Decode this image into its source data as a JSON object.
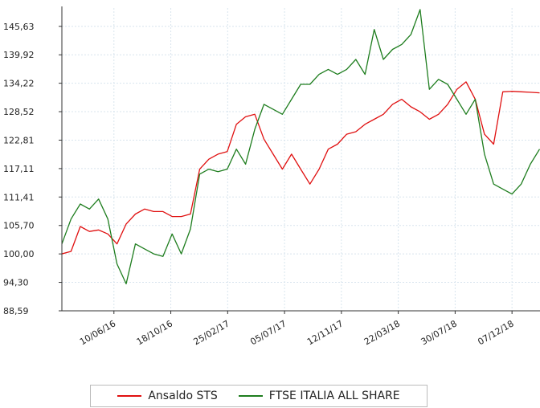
{
  "chart_data": {
    "type": "line",
    "x": [
      "2016-02-12",
      "2016-03-04",
      "2016-03-25",
      "2016-04-15",
      "2016-05-06",
      "2016-05-27",
      "2016-06-17",
      "2016-07-08",
      "2016-07-29",
      "2016-08-19",
      "2016-09-09",
      "2016-09-30",
      "2016-10-21",
      "2016-11-11",
      "2016-12-02",
      "2016-12-23",
      "2017-01-13",
      "2017-02-03",
      "2017-02-24",
      "2017-03-17",
      "2017-04-07",
      "2017-04-28",
      "2017-05-19",
      "2017-06-09",
      "2017-06-30",
      "2017-07-21",
      "2017-08-11",
      "2017-09-01",
      "2017-09-22",
      "2017-10-13",
      "2017-11-03",
      "2017-11-24",
      "2017-12-15",
      "2018-01-05",
      "2018-01-26",
      "2018-02-16",
      "2018-03-09",
      "2018-03-30",
      "2018-04-20",
      "2018-05-11",
      "2018-06-01",
      "2018-06-22",
      "2018-07-13",
      "2018-08-03",
      "2018-08-24",
      "2018-09-14",
      "2018-10-05",
      "2018-10-26",
      "2018-11-16",
      "2018-12-07",
      "2018-12-28",
      "2019-01-18",
      "2019-02-08"
    ],
    "series": [
      {
        "name": "Ansaldo STS",
        "color": "#e01010",
        "values": [
          100.0,
          100.5,
          105.5,
          104.5,
          104.8,
          104,
          102,
          106,
          108,
          109,
          108.5,
          108.5,
          107.5,
          107.5,
          108,
          117,
          119,
          120,
          120.5,
          126,
          127.5,
          128,
          123,
          120,
          117,
          120,
          117,
          114,
          117,
          121,
          122,
          124,
          124.5,
          126,
          127,
          128,
          130,
          131,
          129.5,
          128.5,
          127,
          128,
          130,
          133,
          134.5,
          131,
          124,
          122,
          132.5,
          132.6,
          132.5,
          132.4,
          132.3
        ]
      },
      {
        "name": "FTSE ITALIA ALL SHARE",
        "color": "#1e7d1e",
        "values": [
          102,
          107,
          110,
          109,
          111,
          107,
          98,
          94,
          102,
          101,
          100,
          99.5,
          104,
          100,
          105,
          116,
          117,
          116.5,
          117,
          121,
          118,
          125,
          130,
          129,
          128,
          131,
          134,
          134,
          136,
          137,
          136,
          137,
          139,
          136,
          145,
          139,
          141,
          142,
          144,
          149,
          133,
          135,
          134,
          131,
          128,
          131,
          120,
          114,
          113,
          112,
          114,
          118,
          121
        ]
      }
    ],
    "xlim": [
      "2016-02-12",
      "2019-02-09"
    ],
    "xticks": [
      {
        "value": "2016-06-10",
        "label": "10/06/16"
      },
      {
        "value": "2016-10-18",
        "label": "18/10/16"
      },
      {
        "value": "2017-02-25",
        "label": "25/02/17"
      },
      {
        "value": "2017-07-05",
        "label": "05/07/17"
      },
      {
        "value": "2017-11-12",
        "label": "12/11/17"
      },
      {
        "value": "2018-03-22",
        "label": "22/03/18"
      },
      {
        "value": "2018-07-30",
        "label": "30/07/18"
      },
      {
        "value": "2018-12-07",
        "label": "07/12/18"
      }
    ],
    "ylim": [
      88.59,
      149.3
    ],
    "yticks": [
      {
        "value": 88.59,
        "label": "88,59"
      },
      {
        "value": 94.3,
        "label": "94,30"
      },
      {
        "value": 100.0,
        "label": "100,00"
      },
      {
        "value": 105.7,
        "label": "105,70"
      },
      {
        "value": 111.41,
        "label": "111,41"
      },
      {
        "value": 117.11,
        "label": "117,11"
      },
      {
        "value": 122.81,
        "label": "122,81"
      },
      {
        "value": 128.52,
        "label": "128,52"
      },
      {
        "value": 134.22,
        "label": "134,22"
      },
      {
        "value": 139.92,
        "label": "139,92"
      },
      {
        "value": 145.63,
        "label": "145,63"
      }
    ],
    "grid": true
  }
}
